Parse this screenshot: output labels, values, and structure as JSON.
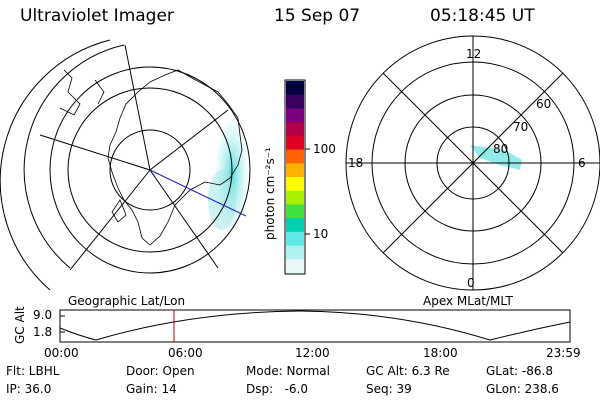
{
  "header": {
    "instrument": "Ultraviolet Imager",
    "date": "15 Sep 07",
    "time": "05:18:45 UT"
  },
  "left_panel": {
    "caption": "Geographic Lat/Lon"
  },
  "right_panel": {
    "caption": "Apex MLat/MLT",
    "mlt_labels": {
      "top": "12",
      "left": "18",
      "right": "6",
      "bottom": "0"
    },
    "lat_labels": [
      "60",
      "70",
      "80"
    ]
  },
  "colorbar": {
    "unit_label": "photon cm⁻²s⁻¹",
    "ticks": [
      "100",
      "10"
    ],
    "colors": [
      "#000040",
      "#3a0060",
      "#7a0080",
      "#b0004a",
      "#e00020",
      "#ff6000",
      "#ffb000",
      "#ffff00",
      "#a8f000",
      "#40e040",
      "#00d0b0",
      "#60e8e8",
      "#b0f0f0",
      "#e8f8f8"
    ]
  },
  "timeline": {
    "axis_title": "GC Alt",
    "y_ticks": [
      "9.0",
      "1.8"
    ],
    "x_ticks": [
      "00:00",
      "06:00",
      "12:00",
      "18:00",
      "23:59"
    ]
  },
  "info": {
    "row1": {
      "flt": "Flt: LBHL",
      "door": "Door: Open",
      "mode": "Mode: Normal",
      "gc_alt": "GC Alt: 6.3 Re",
      "glat": "GLat: -86.8"
    },
    "row2": {
      "ip": "IP: 36.0",
      "gain": "Gain: 14",
      "dsp": "Dsp:   -6.0",
      "seq": "Seq: 39",
      "glon": "GLon: 238.6"
    }
  },
  "colors": {
    "aurora": "#7fe6e6",
    "ray_blue": "#2020c0",
    "cursor_red": "#c00000"
  }
}
